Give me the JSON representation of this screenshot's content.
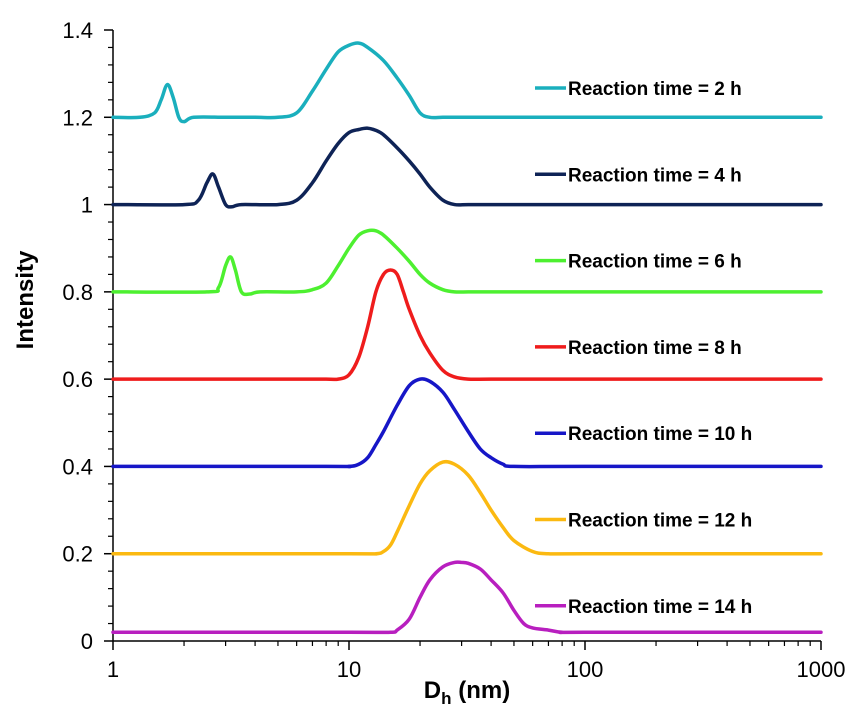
{
  "chart_data": {
    "type": "line",
    "title": "",
    "xlabel": "D",
    "xlabel_sub": "h",
    "xlabel_unit": " (nm)",
    "ylabel": "Intensity",
    "xscale": "log",
    "xlim": [
      1,
      1000
    ],
    "ylim": [
      0,
      1.4
    ],
    "xticks": [
      1,
      10,
      100,
      1000
    ],
    "xtick_labels": [
      "1",
      "10",
      "100",
      "1000"
    ],
    "yticks": [
      0,
      0.2,
      0.4,
      0.6,
      0.8,
      1,
      1.2,
      1.4
    ],
    "ytick_labels": [
      "0",
      "0.2",
      "0.4",
      "0.6",
      "0.8",
      "1",
      "1.2",
      "1.4"
    ],
    "grid": false,
    "legend_position": "right",
    "series": [
      {
        "name": "Reaction time = 2 h",
        "color": "#1AAFBD",
        "x": [
          1,
          1.3,
          1.5,
          1.6,
          1.7,
          1.8,
          1.9,
          2.0,
          2.2,
          3,
          4,
          5,
          6,
          7,
          8,
          9,
          10,
          11,
          12,
          14,
          16,
          18,
          20,
          22,
          25,
          30,
          40,
          100,
          1000
        ],
        "y": [
          1.2,
          1.2,
          1.21,
          1.24,
          1.275,
          1.245,
          1.2,
          1.19,
          1.2,
          1.2,
          1.2,
          1.2,
          1.21,
          1.26,
          1.31,
          1.35,
          1.365,
          1.37,
          1.36,
          1.33,
          1.29,
          1.25,
          1.21,
          1.2,
          1.2,
          1.2,
          1.2,
          1.2,
          1.2
        ]
      },
      {
        "name": "Reaction time = 4 h",
        "color": "#0E2356",
        "x": [
          1,
          2,
          2.3,
          2.5,
          2.65,
          2.8,
          3.0,
          3.2,
          3.5,
          5,
          6,
          7,
          8,
          9,
          10,
          11,
          12,
          13,
          14,
          16,
          18,
          20,
          22,
          25,
          28,
          32,
          40,
          100,
          1000
        ],
        "y": [
          1.0,
          1.0,
          1.01,
          1.05,
          1.07,
          1.04,
          1.0,
          0.995,
          1.0,
          1.0,
          1.01,
          1.05,
          1.1,
          1.14,
          1.165,
          1.172,
          1.175,
          1.17,
          1.16,
          1.13,
          1.1,
          1.07,
          1.04,
          1.01,
          1.0,
          1.0,
          1.0,
          1.0,
          1.0
        ]
      },
      {
        "name": "Reaction time = 6 h",
        "color": "#4DF030",
        "x": [
          1,
          2.5,
          2.8,
          3.0,
          3.15,
          3.3,
          3.5,
          3.8,
          4.2,
          6,
          7,
          8,
          9,
          10,
          11,
          12,
          13,
          14,
          16,
          18,
          20,
          22,
          25,
          28,
          32,
          38,
          50,
          100,
          1000
        ],
        "y": [
          0.8,
          0.8,
          0.81,
          0.86,
          0.88,
          0.85,
          0.8,
          0.795,
          0.8,
          0.8,
          0.805,
          0.82,
          0.86,
          0.9,
          0.93,
          0.94,
          0.94,
          0.93,
          0.9,
          0.87,
          0.84,
          0.82,
          0.805,
          0.8,
          0.8,
          0.8,
          0.8,
          0.8,
          0.8
        ]
      },
      {
        "name": "Reaction time = 8 h",
        "color": "#EF1C1C",
        "x": [
          1,
          5,
          8,
          9,
          10,
          11,
          12,
          13,
          14,
          15,
          16,
          17,
          18,
          20,
          22,
          25,
          28,
          32,
          40,
          100,
          1000
        ],
        "y": [
          0.6,
          0.6,
          0.6,
          0.6,
          0.61,
          0.65,
          0.72,
          0.8,
          0.84,
          0.85,
          0.84,
          0.8,
          0.76,
          0.7,
          0.66,
          0.62,
          0.605,
          0.6,
          0.6,
          0.6,
          0.6
        ]
      },
      {
        "name": "Reaction time = 10 h",
        "color": "#1616C7",
        "x": [
          1,
          8,
          10,
          11,
          12,
          13,
          14,
          16,
          18,
          20,
          22,
          25,
          28,
          32,
          36,
          40,
          45,
          50,
          100,
          1000
        ],
        "y": [
          0.4,
          0.4,
          0.4,
          0.405,
          0.42,
          0.45,
          0.48,
          0.54,
          0.585,
          0.6,
          0.595,
          0.57,
          0.53,
          0.48,
          0.44,
          0.42,
          0.405,
          0.4,
          0.4,
          0.4
        ]
      },
      {
        "name": "Reaction time = 12 h",
        "color": "#FBB911",
        "x": [
          1,
          10,
          13,
          14,
          15,
          16,
          18,
          20,
          22,
          25,
          28,
          32,
          36,
          40,
          45,
          50,
          60,
          70,
          100,
          1000
        ],
        "y": [
          0.2,
          0.2,
          0.2,
          0.205,
          0.22,
          0.25,
          0.31,
          0.36,
          0.39,
          0.41,
          0.405,
          0.38,
          0.34,
          0.3,
          0.26,
          0.23,
          0.205,
          0.2,
          0.2,
          0.2
        ]
      },
      {
        "name": "Reaction time = 14 h",
        "color": "#B81FBF",
        "x": [
          1,
          10,
          15,
          16,
          18,
          20,
          22,
          25,
          28,
          30,
          32,
          36,
          40,
          45,
          50,
          55,
          60,
          70,
          80,
          100,
          1000
        ],
        "y": [
          0.02,
          0.02,
          0.02,
          0.025,
          0.05,
          0.1,
          0.14,
          0.17,
          0.18,
          0.18,
          0.178,
          0.165,
          0.14,
          0.11,
          0.07,
          0.04,
          0.03,
          0.025,
          0.02,
          0.02,
          0.02
        ]
      }
    ]
  }
}
